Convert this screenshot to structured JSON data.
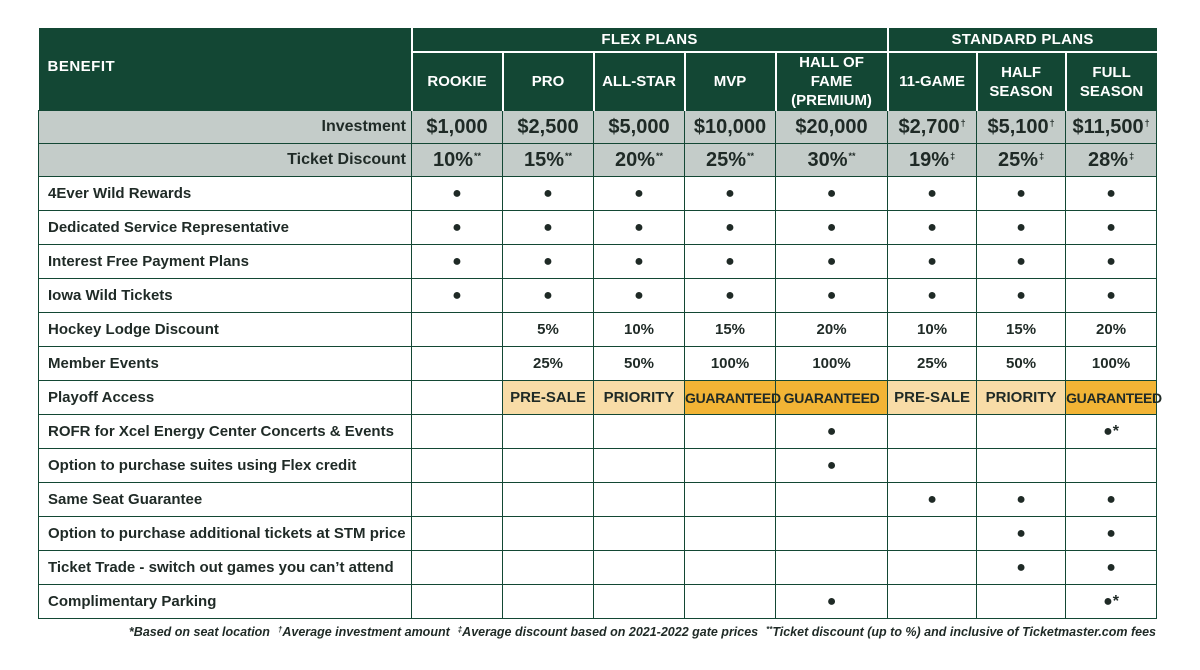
{
  "header": {
    "benefit_label": "BENEFIT",
    "flex_group": "FLEX PLANS",
    "standard_group": "STANDARD PLANS",
    "plans": [
      {
        "line1": "ROOKIE",
        "line2": ""
      },
      {
        "line1": "PRO",
        "line2": ""
      },
      {
        "line1": "ALL-STAR",
        "line2": ""
      },
      {
        "line1": "MVP",
        "line2": ""
      },
      {
        "line1": "HALL OF FAME",
        "line2": "(PREMIUM)"
      },
      {
        "line1": "11-GAME",
        "line2": ""
      },
      {
        "line1": "HALF",
        "line2": "SEASON"
      },
      {
        "line1": "FULL",
        "line2": "SEASON"
      }
    ]
  },
  "investment": {
    "label": "Investment",
    "values": [
      {
        "v": "$1,000",
        "m": ""
      },
      {
        "v": "$2,500",
        "m": ""
      },
      {
        "v": "$5,000",
        "m": ""
      },
      {
        "v": "$10,000",
        "m": ""
      },
      {
        "v": "$20,000",
        "m": ""
      },
      {
        "v": "$2,700",
        "m": "†"
      },
      {
        "v": "$5,100",
        "m": "†"
      },
      {
        "v": "$11,500",
        "m": "†"
      }
    ]
  },
  "discount": {
    "label": "Ticket Discount",
    "values": [
      {
        "v": "10%",
        "m": "**"
      },
      {
        "v": "15%",
        "m": "**"
      },
      {
        "v": "20%",
        "m": "**"
      },
      {
        "v": "25%",
        "m": "**"
      },
      {
        "v": "30%",
        "m": "**"
      },
      {
        "v": "19%",
        "m": "‡"
      },
      {
        "v": "25%",
        "m": "‡"
      },
      {
        "v": "28%",
        "m": "‡"
      }
    ]
  },
  "rows": [
    {
      "label": "4Ever Wild Rewards",
      "cells": [
        "●",
        "●",
        "●",
        "●",
        "●",
        "●",
        "●",
        "●"
      ]
    },
    {
      "label": "Dedicated Service Representative",
      "cells": [
        "●",
        "●",
        "●",
        "●",
        "●",
        "●",
        "●",
        "●"
      ]
    },
    {
      "label": "Interest Free Payment Plans",
      "cells": [
        "●",
        "●",
        "●",
        "●",
        "●",
        "●",
        "●",
        "●"
      ]
    },
    {
      "label": "Iowa Wild Tickets",
      "cells": [
        "●",
        "●",
        "●",
        "●",
        "●",
        "●",
        "●",
        "●"
      ]
    },
    {
      "label": "Hockey Lodge Discount",
      "cells": [
        "",
        "5%",
        "10%",
        "15%",
        "20%",
        "10%",
        "15%",
        "20%"
      ]
    },
    {
      "label": "Member Events",
      "cells": [
        "",
        "25%",
        "50%",
        "100%",
        "100%",
        "25%",
        "50%",
        "100%"
      ]
    },
    {
      "label": "Playoff Access",
      "cells": [
        "",
        "PRE-SALE",
        "PRIORITY",
        "GUARANTEED",
        "GUARANTEED",
        "PRE-SALE",
        "PRIORITY",
        "GUARANTEED"
      ]
    },
    {
      "label": "ROFR for Xcel Energy Center Concerts & Events",
      "cells": [
        "",
        "",
        "",
        "",
        "●",
        "",
        "",
        "●*"
      ]
    },
    {
      "label": "Option to purchase suites using Flex credit",
      "cells": [
        "",
        "",
        "",
        "",
        "●",
        "",
        "",
        ""
      ]
    },
    {
      "label": "Same Seat Guarantee",
      "cells": [
        "",
        "",
        "",
        "",
        "",
        "●",
        "●",
        "●"
      ]
    },
    {
      "label": "Option to purchase additional tickets at STM price",
      "cells": [
        "",
        "",
        "",
        "",
        "",
        "",
        "●",
        "●"
      ]
    },
    {
      "label": "Ticket Trade - switch out games you can’t attend",
      "cells": [
        "",
        "",
        "",
        "",
        "",
        "",
        "●",
        "●"
      ]
    },
    {
      "label": "Complimentary Parking",
      "cells": [
        "",
        "",
        "",
        "",
        "●",
        "",
        "",
        "●*"
      ]
    }
  ],
  "colors": {
    "green": "#134734",
    "gray": "#c4ccc9",
    "access_light": "#f8dca7",
    "access_dark": "#f2b435"
  },
  "footnote": {
    "a": "*Based on seat location",
    "b_mark": "†",
    "b": "Average investment amount",
    "c_mark": "‡",
    "c": "Average discount based on 2021-2022 gate prices",
    "d_mark": "**",
    "d": "Ticket discount (up to %) and inclusive of Ticketmaster.com fees"
  }
}
